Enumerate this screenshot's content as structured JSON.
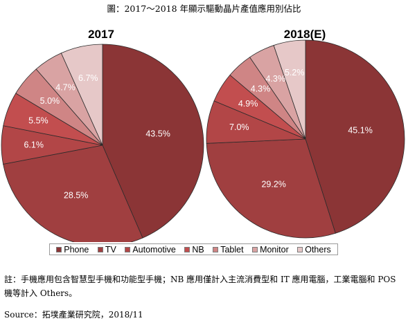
{
  "figure": {
    "title": "圖：2017～2018 年顯示驅動晶片產值應用別佔比",
    "note": "註：手機應用包含智慧型手機和功能型手機；NB 應用僅計入主流消費型和 IT 應用電腦，工業電腦和 POS 機等計入 Others。",
    "source": "Source：拓墣產業研究院，2018/11"
  },
  "colors": {
    "Phone": "#8b3536",
    "TV": "#a03f40",
    "Automotive": "#b24647",
    "NB": "#c24e4f",
    "Tablet": "#cf8585",
    "Monitor": "#d9a3a3",
    "Others": "#e6c8c8"
  },
  "chart_data": [
    {
      "type": "pie",
      "title": "2017",
      "categories": [
        "Phone",
        "TV",
        "Automotive",
        "NB",
        "Tablet",
        "Monitor",
        "Others"
      ],
      "values": [
        43.5,
        28.5,
        6.1,
        5.5,
        5.0,
        4.7,
        6.7
      ],
      "labels": [
        "43.5%",
        "28.5%",
        "6.1%",
        "5.5%",
        "5.0%",
        "4.7%",
        "6.7%"
      ],
      "legend": "bottom"
    },
    {
      "type": "pie",
      "title": "2018(E)",
      "categories": [
        "Phone",
        "TV",
        "Automotive",
        "NB",
        "Tablet",
        "Monitor",
        "Others"
      ],
      "values": [
        45.1,
        29.2,
        7.0,
        4.9,
        4.3,
        4.3,
        5.2
      ],
      "labels": [
        "45.1%",
        "29.2%",
        "7.0%",
        "4.9%",
        "4.3%",
        "4.3%",
        "5.2%"
      ],
      "legend": "bottom"
    }
  ],
  "legend": {
    "items": [
      "Phone",
      "TV",
      "Automotive",
      "NB",
      "Tablet",
      "Monitor",
      "Others"
    ]
  }
}
